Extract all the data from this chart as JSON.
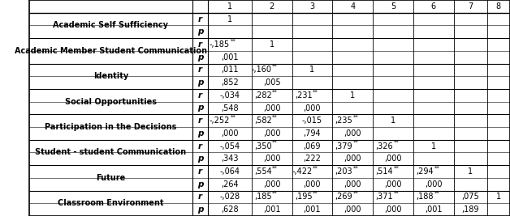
{
  "col_headers": [
    "",
    "",
    "1",
    "2",
    "3",
    "4",
    "5",
    "6",
    "7",
    "8"
  ],
  "groups": [
    {
      "label": "Academic Self Sufficiency",
      "r_vals": [
        "1",
        "",
        "",
        "",
        "",
        "",
        "",
        ""
      ],
      "p_vals": [
        "",
        "",
        "",
        "",
        "",
        "",
        "",
        ""
      ]
    },
    {
      "label": "Academic Member Student Communication",
      "r_vals": [
        "-,185**",
        "1",
        "",
        "",
        "",
        "",
        "",
        ""
      ],
      "p_vals": [
        ",001",
        "",
        "",
        "",
        "",
        "",
        "",
        ""
      ]
    },
    {
      "label": "Identity",
      "r_vals": [
        ",011",
        "-,160**",
        "1",
        "",
        "",
        "",
        "",
        ""
      ],
      "p_vals": [
        ",852",
        ",005",
        "",
        "",
        "",
        "",
        "",
        ""
      ]
    },
    {
      "label": "Social Opportunities",
      "r_vals": [
        "-,034",
        ",282**",
        ",231**",
        "1",
        "",
        "",
        "",
        ""
      ],
      "p_vals": [
        ",548",
        ",000",
        ",000",
        "",
        "",
        "",
        "",
        ""
      ]
    },
    {
      "label": "Participation in the Decisions",
      "r_vals": [
        "-,252**",
        ",582**",
        "-,015",
        ",235**",
        "1",
        "",
        "",
        ""
      ],
      "p_vals": [
        ",000",
        ",000",
        ",794",
        ",000",
        "",
        "",
        "",
        ""
      ]
    },
    {
      "label": "Student - student Communication",
      "r_vals": [
        "-,054",
        ",350**",
        ",069",
        ",379**",
        ",326**",
        "1",
        "",
        ""
      ],
      "p_vals": [
        ",343",
        ",000",
        ",222",
        ",000",
        ",000",
        "",
        "",
        ""
      ]
    },
    {
      "label": "Future",
      "r_vals": [
        "-,064",
        ",554**",
        "-,422**",
        ",203**",
        ",514**",
        ",294**",
        "1",
        ""
      ],
      "p_vals": [
        ",264",
        ",000",
        ",000",
        ",000",
        ",000",
        ",000",
        "",
        ""
      ]
    },
    {
      "label": "Classroom Environment",
      "r_vals": [
        "-,028",
        ",185**",
        ",195**",
        ",269**",
        ",371**",
        ",188**",
        ",075",
        "1"
      ],
      "p_vals": [
        ",628",
        ",001",
        ",001",
        ",000",
        ",000",
        ",001",
        ",189",
        ""
      ]
    }
  ],
  "background_color": "#ffffff",
  "text_color": "#000000",
  "line_color": "#000000",
  "label_fontsize": 7.0,
  "data_fontsize": 7.0,
  "sup_fontsize": 5.0,
  "rp_fontsize": 7.5
}
